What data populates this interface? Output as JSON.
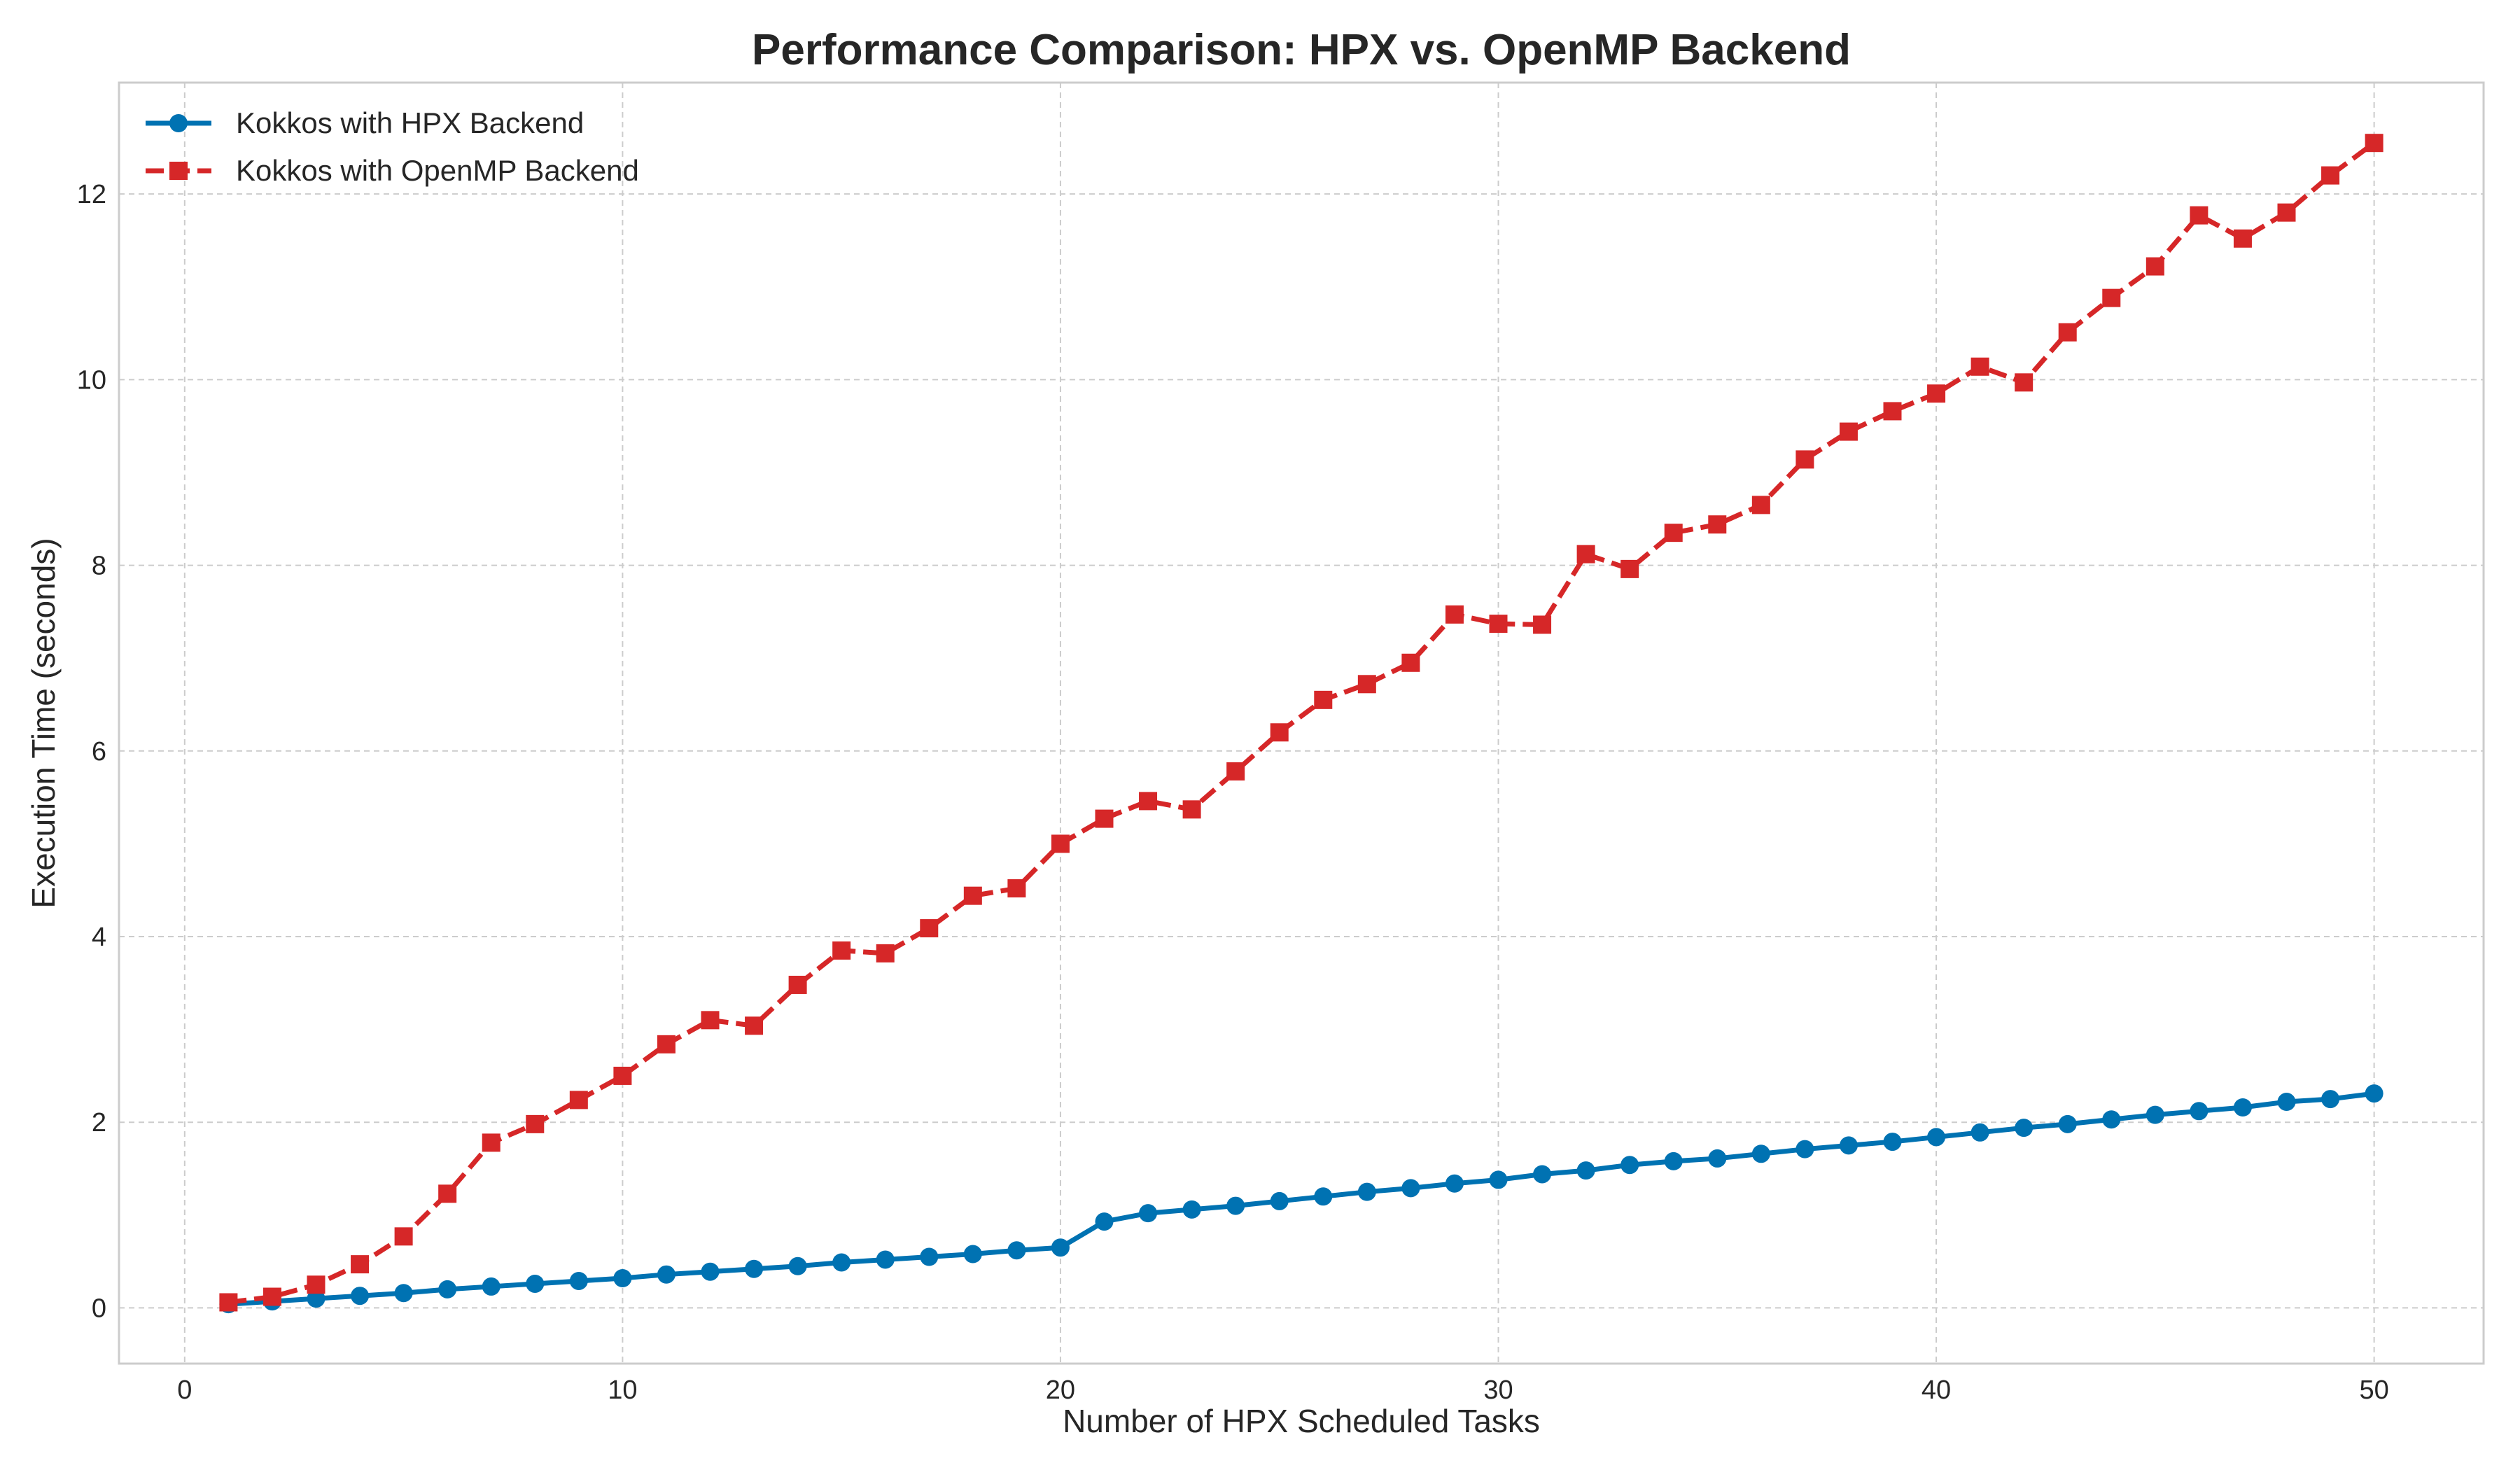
{
  "chart_data": {
    "type": "line",
    "title": "Performance Comparison: HPX vs. OpenMP Backend",
    "xlabel": "Number of HPX Scheduled Tasks",
    "ylabel": "Execution Time (seconds)",
    "xlim": [
      -1.5,
      52.5
    ],
    "ylim": [
      -0.6,
      13.2
    ],
    "xticks": [
      0,
      10,
      20,
      30,
      40,
      50
    ],
    "yticks": [
      0,
      2,
      4,
      6,
      8,
      10,
      12
    ],
    "grid": true,
    "legend_position": "top-left",
    "x": [
      1,
      2,
      3,
      4,
      5,
      6,
      7,
      8,
      9,
      10,
      11,
      12,
      13,
      14,
      15,
      16,
      17,
      18,
      19,
      20,
      21,
      22,
      23,
      24,
      25,
      26,
      27,
      28,
      29,
      30,
      31,
      32,
      33,
      34,
      35,
      36,
      37,
      38,
      39,
      40,
      41,
      42,
      43,
      44,
      45,
      46,
      47,
      48,
      49,
      50
    ],
    "series": [
      {
        "name": "Kokkos with HPX Backend",
        "color": "#0072b2",
        "marker": "circle",
        "linestyle": "solid",
        "values": [
          0.04,
          0.07,
          0.1,
          0.13,
          0.16,
          0.2,
          0.23,
          0.26,
          0.29,
          0.32,
          0.36,
          0.39,
          0.42,
          0.45,
          0.49,
          0.52,
          0.55,
          0.58,
          0.62,
          0.65,
          0.93,
          1.02,
          1.06,
          1.1,
          1.15,
          1.2,
          1.25,
          1.29,
          1.34,
          1.38,
          1.44,
          1.48,
          1.54,
          1.58,
          1.61,
          1.66,
          1.71,
          1.75,
          1.79,
          1.84,
          1.89,
          1.94,
          1.98,
          2.03,
          2.08,
          2.12,
          2.16,
          2.22,
          2.25,
          2.31
        ]
      },
      {
        "name": "Kokkos with OpenMP Backend",
        "color": "#d62728",
        "marker": "square",
        "linestyle": "dashed",
        "values": [
          0.06,
          0.12,
          0.25,
          0.47,
          0.77,
          1.23,
          1.78,
          1.98,
          2.24,
          2.5,
          2.84,
          3.1,
          3.04,
          3.48,
          3.85,
          3.82,
          4.09,
          4.44,
          4.52,
          5.0,
          5.27,
          5.46,
          5.37,
          5.78,
          6.2,
          6.55,
          6.72,
          6.95,
          7.47,
          7.37,
          7.36,
          8.12,
          7.96,
          8.35,
          8.44,
          8.65,
          9.14,
          9.44,
          9.66,
          9.85,
          10.14,
          9.97,
          10.51,
          10.88,
          11.22,
          11.77,
          11.52,
          11.8,
          12.2,
          12.55
        ]
      }
    ]
  }
}
